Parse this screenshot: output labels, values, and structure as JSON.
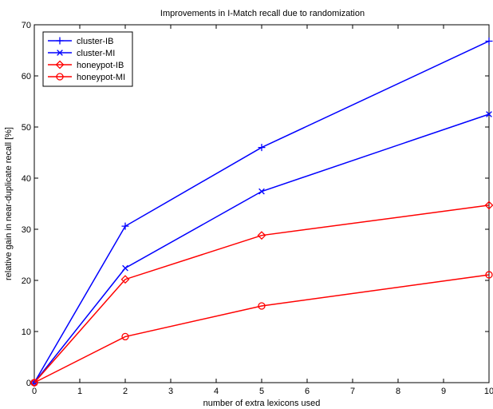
{
  "chart_data": {
    "type": "line",
    "title": "Improvements in I-Match recall due to randomization",
    "xlabel": "number of extra lexicons used",
    "ylabel": "relative gain in near-duplicate recall [%]",
    "xlim": [
      0,
      10
    ],
    "ylim": [
      0,
      70
    ],
    "xticks": [
      0,
      1,
      2,
      3,
      4,
      5,
      6,
      7,
      8,
      9,
      10
    ],
    "yticks": [
      0,
      10,
      20,
      30,
      40,
      50,
      60,
      70
    ],
    "grid": false,
    "legend_position": "top-left",
    "x": [
      0,
      2,
      5,
      10
    ],
    "series": [
      {
        "name": "cluster-IB",
        "values": [
          0,
          30.6,
          46.0,
          66.8
        ],
        "color": "#0000ff",
        "marker": "plus"
      },
      {
        "name": "cluster-MI",
        "values": [
          0,
          22.4,
          37.4,
          52.5
        ],
        "color": "#0000ff",
        "marker": "x"
      },
      {
        "name": "honeypot-IB",
        "values": [
          0,
          20.2,
          28.8,
          34.7
        ],
        "color": "#ff0000",
        "marker": "diamond"
      },
      {
        "name": "honeypot-MI",
        "values": [
          0,
          9.0,
          15.0,
          21.1
        ],
        "color": "#ff0000",
        "marker": "circle"
      }
    ]
  }
}
